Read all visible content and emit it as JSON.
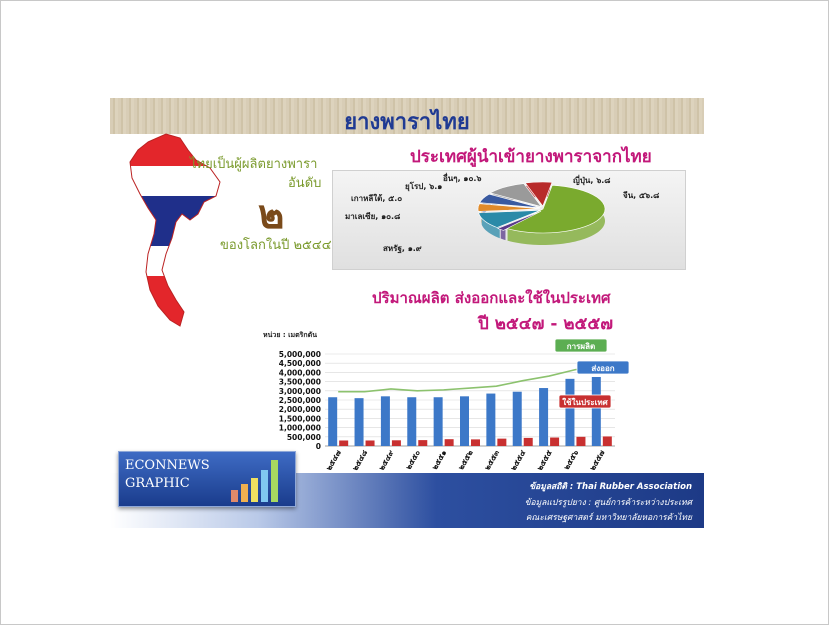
{
  "title": "ยางพาราไทย",
  "map_text": {
    "line1": "ไทยเป็นผู้ผลิตยางพารา",
    "line2": "อันดับ",
    "rank": "๒",
    "line3": "ของโลกในปี ๒๕๔๔"
  },
  "flag_colors": {
    "red": "#e3262b",
    "white": "#ffffff",
    "blue": "#1f2f8a"
  },
  "headings": {
    "pie": "ประเทศผู้นำเข้ายางพาราจากไทย",
    "bar_line1": "ปริมาณผลิต ส่งออกและใช้ในประเทศ",
    "bar_line2": "ปี ๒๕๔๗ - ๒๕๕๗"
  },
  "footer": {
    "source1": "ข้อมูลสถิติ : Thai Rubber Association",
    "source2": "ข้อมูลแปรรูปยาง : ศูนย์การค้าระหว่างประเทศ",
    "source3": "คณะเศรษฐศาสตร์ มหาวิทยาลัยหอการค้าไทย"
  },
  "logo": {
    "line1": "ECONNEWS",
    "line2": "GRAPHIC"
  },
  "chart_data": [
    {
      "type": "pie",
      "title": "ประเทศผู้นำเข้ายางพาราจากไทย",
      "slices": [
        {
          "label": "จีน, ๕๖.๘",
          "value": 56.8,
          "color": "#7aaa2e"
        },
        {
          "label": "สหรัฐ, ๑.๙",
          "value": 1.9,
          "color": "#5a3a8a"
        },
        {
          "label": "มาเลเซีย, ๑๐.๘",
          "value": 10.8,
          "color": "#2a8aa8"
        },
        {
          "label": "เกาหลีใต้, ๕.๐",
          "value": 5.0,
          "color": "#e08a2a"
        },
        {
          "label": "ยุโรป, ๖.๑",
          "value": 6.1,
          "color": "#3a5aa0"
        },
        {
          "label": "อื่นๆ, ๑๐.๖",
          "value": 10.6,
          "color": "#9a9a9a"
        },
        {
          "label": "ญี่ปุ่น, ๖.๘",
          "value": 6.8,
          "color": "#b82a2a"
        }
      ]
    },
    {
      "type": "bar",
      "title": "ปริมาณผลิต ส่งออกและใช้ในประเทศ",
      "ylabel": "หน่วย : เมตริกตัน",
      "ylim": [
        0,
        5000000
      ],
      "yticks": [
        "0",
        "500,000",
        "1,000,000",
        "1,500,000",
        "2,000,000",
        "2,500,000",
        "3,000,000",
        "3,500,000",
        "4,000,000",
        "4,500,000",
        "5,000,000"
      ],
      "categories": [
        "๒๕๔๗",
        "๒๕๔๘",
        "๒๕๔๙",
        "๒๕๕๐",
        "๒๕๕๑",
        "๒๕๕๒",
        "๒๕๕๓",
        "๒๕๕๔",
        "๒๕๕๕",
        "๒๕๕๖",
        "๒๕๕๗"
      ],
      "series": [
        {
          "name": "การผลิต",
          "kind": "line",
          "color": "#8cc26e",
          "values": [
            2950000,
            2950000,
            3100000,
            3000000,
            3050000,
            3150000,
            3250000,
            3550000,
            3800000,
            4150000,
            4300000
          ]
        },
        {
          "name": "ส่งออก",
          "kind": "bar",
          "color": "#3c78c8",
          "values": [
            2650000,
            2600000,
            2700000,
            2650000,
            2650000,
            2700000,
            2850000,
            2950000,
            3150000,
            3650000,
            3750000
          ]
        },
        {
          "name": "ใช้ในประเทศ",
          "kind": "bar",
          "color": "#c83030",
          "values": [
            300000,
            300000,
            310000,
            320000,
            370000,
            360000,
            400000,
            440000,
            460000,
            500000,
            520000
          ]
        }
      ]
    }
  ]
}
